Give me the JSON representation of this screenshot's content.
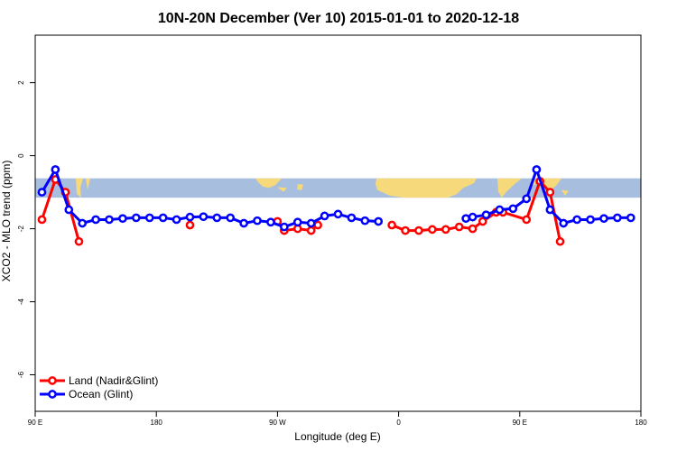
{
  "chart_data": {
    "type": "line",
    "title": "10N-20N December (Ver 10)   2015-01-01 to 2020-12-18",
    "xlabel": "Longitude (deg E)",
    "ylabel": "XCO2 - MLO trend (ppm)",
    "xlim": [
      90,
      540
    ],
    "ylim": [
      -7,
      3.3
    ],
    "x_ticks": [
      {
        "value": 90,
        "label": "90 E"
      },
      {
        "value": 180,
        "label": "180"
      },
      {
        "value": 270,
        "label": "90 W"
      },
      {
        "value": 360,
        "label": "0"
      },
      {
        "value": 450,
        "label": "90 E"
      },
      {
        "value": 540,
        "label": "180"
      }
    ],
    "y_ticks": [
      {
        "value": 2,
        "label": "2"
      },
      {
        "value": 0,
        "label": "0"
      },
      {
        "value": -2,
        "label": "-2"
      },
      {
        "value": -4,
        "label": "-4"
      },
      {
        "value": -6,
        "label": "-6"
      }
    ],
    "map_band": {
      "ymin": -1.15,
      "ymax": -0.62,
      "ocean_color": "#a7bedf",
      "land_color": "#f5d97a"
    },
    "legend": {
      "position": "bottom-left"
    },
    "series": [
      {
        "name": "Land (Nadir&Glint)",
        "color": "#ff0000",
        "segments": [
          [
            [
              95,
              -1.75
            ],
            [
              105,
              -0.65
            ],
            [
              112.5,
              -1.0
            ],
            [
              122.5,
              -2.35
            ]
          ],
          [
            [
              205,
              -1.9
            ]
          ],
          [
            [
              270,
              -1.8
            ],
            [
              275,
              -2.05
            ],
            [
              285,
              -2.0
            ],
            [
              295,
              -2.05
            ],
            [
              300,
              -1.9
            ]
          ],
          [
            [
              355,
              -1.9
            ],
            [
              365,
              -2.05
            ],
            [
              375,
              -2.05
            ],
            [
              385,
              -2.02
            ],
            [
              395,
              -2.02
            ],
            [
              405,
              -1.95
            ],
            [
              415,
              -2.0
            ],
            [
              422.5,
              -1.8
            ],
            [
              432.5,
              -1.55
            ],
            [
              437.5,
              -1.55
            ],
            [
              455,
              -1.75
            ],
            [
              465,
              -0.7
            ],
            [
              472.5,
              -1.0
            ],
            [
              480,
              -2.35
            ]
          ]
        ]
      },
      {
        "name": "Ocean (Glint)",
        "color": "#0000ff",
        "segments": [
          [
            [
              95,
              -1.0
            ],
            [
              105,
              -0.38
            ],
            [
              115,
              -1.48
            ],
            [
              125,
              -1.85
            ],
            [
              135,
              -1.75
            ],
            [
              145,
              -1.75
            ],
            [
              155,
              -1.72
            ],
            [
              165,
              -1.7
            ],
            [
              175,
              -1.7
            ],
            [
              185,
              -1.7
            ],
            [
              195,
              -1.75
            ],
            [
              205,
              -1.68
            ],
            [
              215,
              -1.67
            ],
            [
              225,
              -1.7
            ],
            [
              235,
              -1.7
            ],
            [
              245,
              -1.85
            ],
            [
              255,
              -1.78
            ],
            [
              265,
              -1.82
            ],
            [
              275,
              -1.95
            ],
            [
              285,
              -1.82
            ],
            [
              295,
              -1.85
            ],
            [
              305,
              -1.65
            ],
            [
              315,
              -1.6
            ],
            [
              325,
              -1.7
            ],
            [
              335,
              -1.78
            ],
            [
              345,
              -1.8
            ]
          ],
          [
            [
              410,
              -1.72
            ],
            [
              415,
              -1.68
            ],
            [
              425,
              -1.62
            ],
            [
              435,
              -1.48
            ],
            [
              445,
              -1.45
            ],
            [
              455,
              -1.18
            ],
            [
              462.5,
              -0.38
            ],
            [
              472.5,
              -1.48
            ],
            [
              482.5,
              -1.85
            ],
            [
              492.5,
              -1.75
            ],
            [
              502.5,
              -1.75
            ],
            [
              512.5,
              -1.72
            ],
            [
              522.5,
              -1.7
            ],
            [
              532.5,
              -1.7
            ]
          ]
        ]
      }
    ]
  }
}
